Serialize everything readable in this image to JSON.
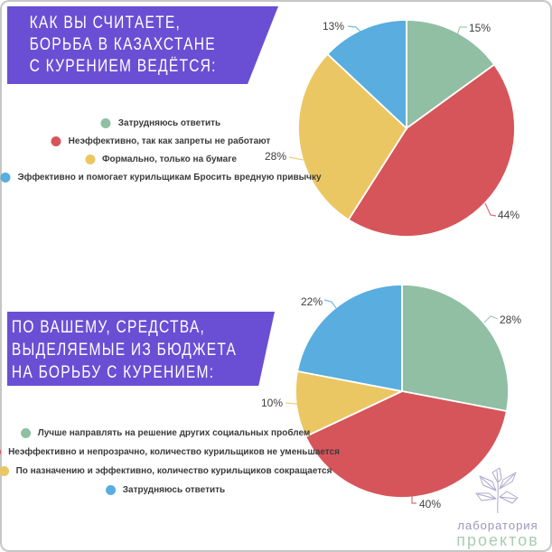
{
  "colors": {
    "banner": "#6A4FD4",
    "card_border": "#C6C6C6",
    "green": "#90BFA4",
    "red": "#D6555A",
    "yellow": "#EBC763",
    "blue": "#59ADDF",
    "legend_text": "#3B3B3B",
    "label_text": "#3E3E3E",
    "logo_purple": "#9C96BA",
    "logo_green": "#A9CCB4"
  },
  "sections": [
    {
      "title_lines": [
        "КАК ВЫ СЧИТАЕТЕ,",
        "БОРЬБА В КАЗАХСТАНЕ",
        "С КУРЕНИЕМ ВЕДЁТСЯ:"
      ]
    },
    {
      "title_lines": [
        "ПО ВАШЕМУ, СРЕДСТВА,",
        "ВЫДЕЛЯЕМЫЕ ИЗ БЮДЖЕТА",
        "НА БОРЬБУ С КУРЕНИЕМ:"
      ]
    }
  ],
  "chart_data": [
    {
      "type": "pie",
      "title": "Как вы считаете, борьба в Казахстане с курением ведётся:",
      "categories": [
        "Затрудняюсь ответить",
        "Неэффективно, так как запреты не работают",
        "Формально, только на бумаге",
        "Эффективно и помогает курильщикам Бросить вредную привычку"
      ],
      "values": [
        15,
        44,
        28,
        13
      ],
      "unit": "%",
      "colors": [
        "#90BFA4",
        "#D6555A",
        "#EBC763",
        "#59ADDF"
      ],
      "start_angle_deg": 0,
      "direction": "clockwise",
      "legend_position": "left"
    },
    {
      "type": "pie",
      "title": "По вашему, средства, выделяемые из бюджета на борьбу с курением:",
      "categories": [
        "Лучше направлять на решение других социальных проблем",
        "Неэффективно и непрозрачно, количество курильщиков не уменьшается",
        "По назначению и эффективно, количество курильщиков сокращается",
        "Затрудняюсь ответить"
      ],
      "values": [
        28,
        40,
        10,
        22
      ],
      "unit": "%",
      "colors": [
        "#90BFA4",
        "#D6555A",
        "#EBC763",
        "#59ADDF"
      ],
      "start_angle_deg": 0,
      "direction": "clockwise",
      "legend_position": "left"
    }
  ],
  "logo": {
    "line1": "лаборатория",
    "line2": "проектов"
  }
}
